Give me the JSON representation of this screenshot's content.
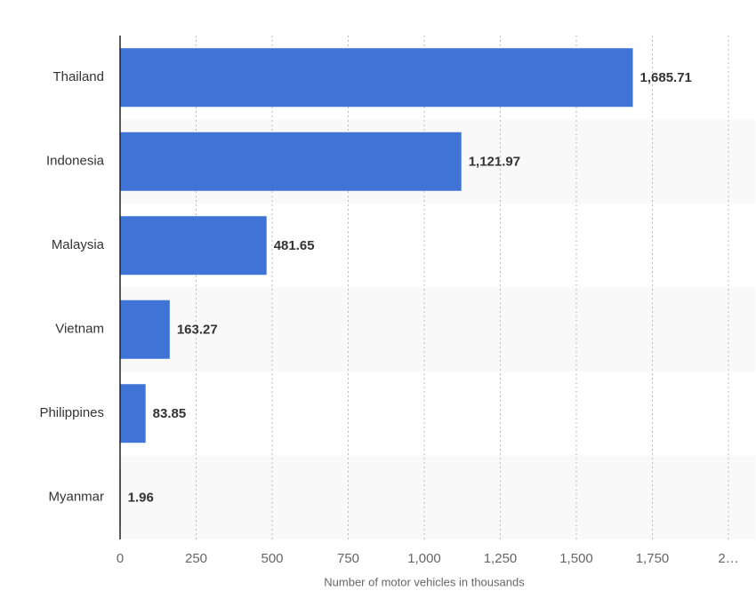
{
  "chart_data": {
    "type": "bar",
    "orientation": "horizontal",
    "x_label": "Number of motor vehicles in thousands",
    "categories": [
      "Thailand",
      "Indonesia",
      "Malaysia",
      "Vietnam",
      "Philippines",
      "Myanmar"
    ],
    "values": [
      1685.71,
      1121.97,
      481.65,
      163.27,
      83.85,
      1.96
    ],
    "value_labels": [
      "1,685.71",
      "1,121.97",
      "481.65",
      "163.27",
      "83.85",
      "1.96"
    ],
    "color": "#3f74d6",
    "xlim": [
      0,
      2000
    ],
    "xticks": [
      0,
      250,
      500,
      750,
      {
        "value": 1000,
        "label": "1,000"
      },
      {
        "value": 1250,
        "label": "1,250"
      },
      {
        "value": 1500,
        "label": "1,500"
      },
      {
        "value": 1750,
        "label": "1,750"
      },
      {
        "value": 2000,
        "label": "2…"
      }
    ],
    "grid": true
  }
}
